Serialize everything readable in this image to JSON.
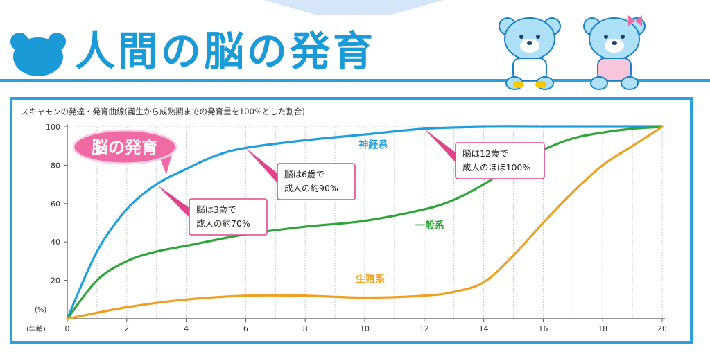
{
  "page": {
    "title": "人間の脳の発育"
  },
  "chart_data": {
    "type": "line",
    "title": "スキャモンの発達・発育曲線(誕生から成熟期までの発育量を100%とした割合)",
    "xlabel": "(年齢)",
    "ylabel": "(%)",
    "xlim": [
      0,
      20
    ],
    "ylim": [
      0,
      100
    ],
    "x_ticks": [
      0,
      2,
      4,
      6,
      8,
      10,
      12,
      14,
      16,
      18,
      20
    ],
    "y_ticks": [
      20,
      40,
      60,
      80,
      100
    ],
    "grid": "vertical",
    "series": [
      {
        "name": "神経系",
        "color": "#1e9fe0",
        "x": [
          0,
          1,
          2,
          3,
          4,
          5,
          6,
          8,
          10,
          12,
          14,
          16,
          18,
          20
        ],
        "y": [
          0,
          35,
          57,
          70,
          78,
          85,
          89,
          93,
          96,
          99,
          100,
          100,
          100,
          100
        ]
      },
      {
        "name": "一般系",
        "color": "#2fa43a",
        "x": [
          0,
          1,
          2,
          3,
          4,
          6,
          8,
          10,
          12,
          13,
          14,
          15,
          16,
          17,
          18,
          19,
          20
        ],
        "y": [
          0,
          20,
          30,
          35,
          38,
          44,
          48,
          51,
          57,
          62,
          70,
          80,
          88,
          94,
          97,
          99,
          100
        ]
      },
      {
        "name": "生殖系",
        "color": "#f0a020",
        "x": [
          0,
          2,
          4,
          6,
          8,
          10,
          12,
          13,
          14,
          15,
          16,
          17,
          18,
          19,
          20
        ],
        "y": [
          0,
          6,
          10,
          12,
          12,
          11,
          12,
          14,
          19,
          33,
          50,
          66,
          80,
          90,
          100
        ]
      }
    ],
    "series_label_positions": [
      {
        "series": "神経系",
        "x": 9.8,
        "y": 89
      },
      {
        "series": "一般系",
        "x": 11.7,
        "y": 47
      },
      {
        "series": "生殖系",
        "x": 9.7,
        "y": 19
      }
    ],
    "annotations": [
      {
        "lines": [
          "脳は3歳で",
          "成人の約70%"
        ],
        "x": 3,
        "y": 70
      },
      {
        "lines": [
          "脳は6歳で",
          "成人の約90%"
        ],
        "x": 6,
        "y": 89
      },
      {
        "lines": [
          "脳は12歳で",
          "成人のほぼ100%"
        ],
        "x": 12,
        "y": 99
      }
    ],
    "callout": {
      "text": "脳の発育"
    }
  },
  "colors": {
    "accent": "#2aa0dc",
    "title": "#1a9ad6",
    "annotation_border": "#e0458a",
    "callout_fill": "#f06aa6",
    "callout_text": "#ffffff"
  },
  "icons": [
    "bear-head-icon",
    "boy-bear-mascot",
    "girl-bear-mascot"
  ]
}
